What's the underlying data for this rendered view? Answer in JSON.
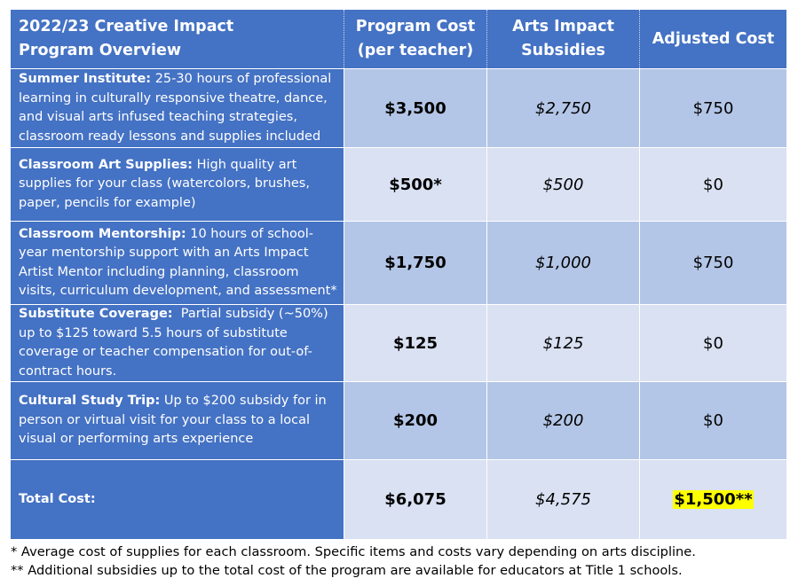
{
  "header": {
    "overview_line1": "2022/23 Creative Impact",
    "overview_line2": "Program Overview",
    "program_cost_line1": "Program Cost",
    "program_cost_line2": "(per teacher)",
    "subsidies_line1": "Arts Impact",
    "subsidies_line2": "Subsidies",
    "adjusted_cost": "Adjusted Cost"
  },
  "rows": [
    {
      "title": "Summer Institute:",
      "description": " 25-30 hours of professional learning in culturally responsive theatre, dance, and visual arts infused teaching strategies, classroom ready lessons and supplies included",
      "program_cost": "$3,500",
      "subsidy": "$2,750",
      "adjusted": "$750"
    },
    {
      "title": "Classroom Art Supplies:",
      "description": " High quality art supplies for your class (watercolors, brushes, paper, pencils for example)",
      "program_cost": "$500*",
      "subsidy": "$500",
      "adjusted": "$0"
    },
    {
      "title": "Classroom Mentorship:",
      "description": " 10 hours of school-year mentorship support with an Arts Impact Artist Mentor including planning, classroom visits, curriculum development, and assessment*",
      "program_cost": "$1,750",
      "subsidy": "$1,000",
      "adjusted": "$750"
    },
    {
      "title": "Substitute Coverage:",
      "description": "  Partial subsidy (~50%) up to $125 toward 5.5 hours of substitute coverage or teacher compensation for out-of-contract hours.",
      "program_cost": "$125",
      "subsidy": "$125",
      "adjusted": "$0"
    },
    {
      "title": "Cultural Study Trip:",
      "description": " Up to $200 subsidy for in person or virtual visit for your class to a local visual or performing arts experience",
      "program_cost": "$200",
      "subsidy": "$200",
      "adjusted": "$0"
    }
  ],
  "total": {
    "label": "Total Cost:",
    "program_cost": "$6,075",
    "subsidy": "$4,575",
    "adjusted": "$1,500**"
  },
  "footnotes": {
    "note1": "* Average cost of supplies for each classroom. Specific items and costs vary depending on arts discipline.",
    "note2": "** Additional subsidies up to the total cost of the program are available for educators at Title 1 schools."
  },
  "colors": {
    "header_blue": "#4472c4",
    "cell_dark": "#b4c6e7",
    "cell_light": "#d9e1f2",
    "highlight": "#ffff00"
  }
}
